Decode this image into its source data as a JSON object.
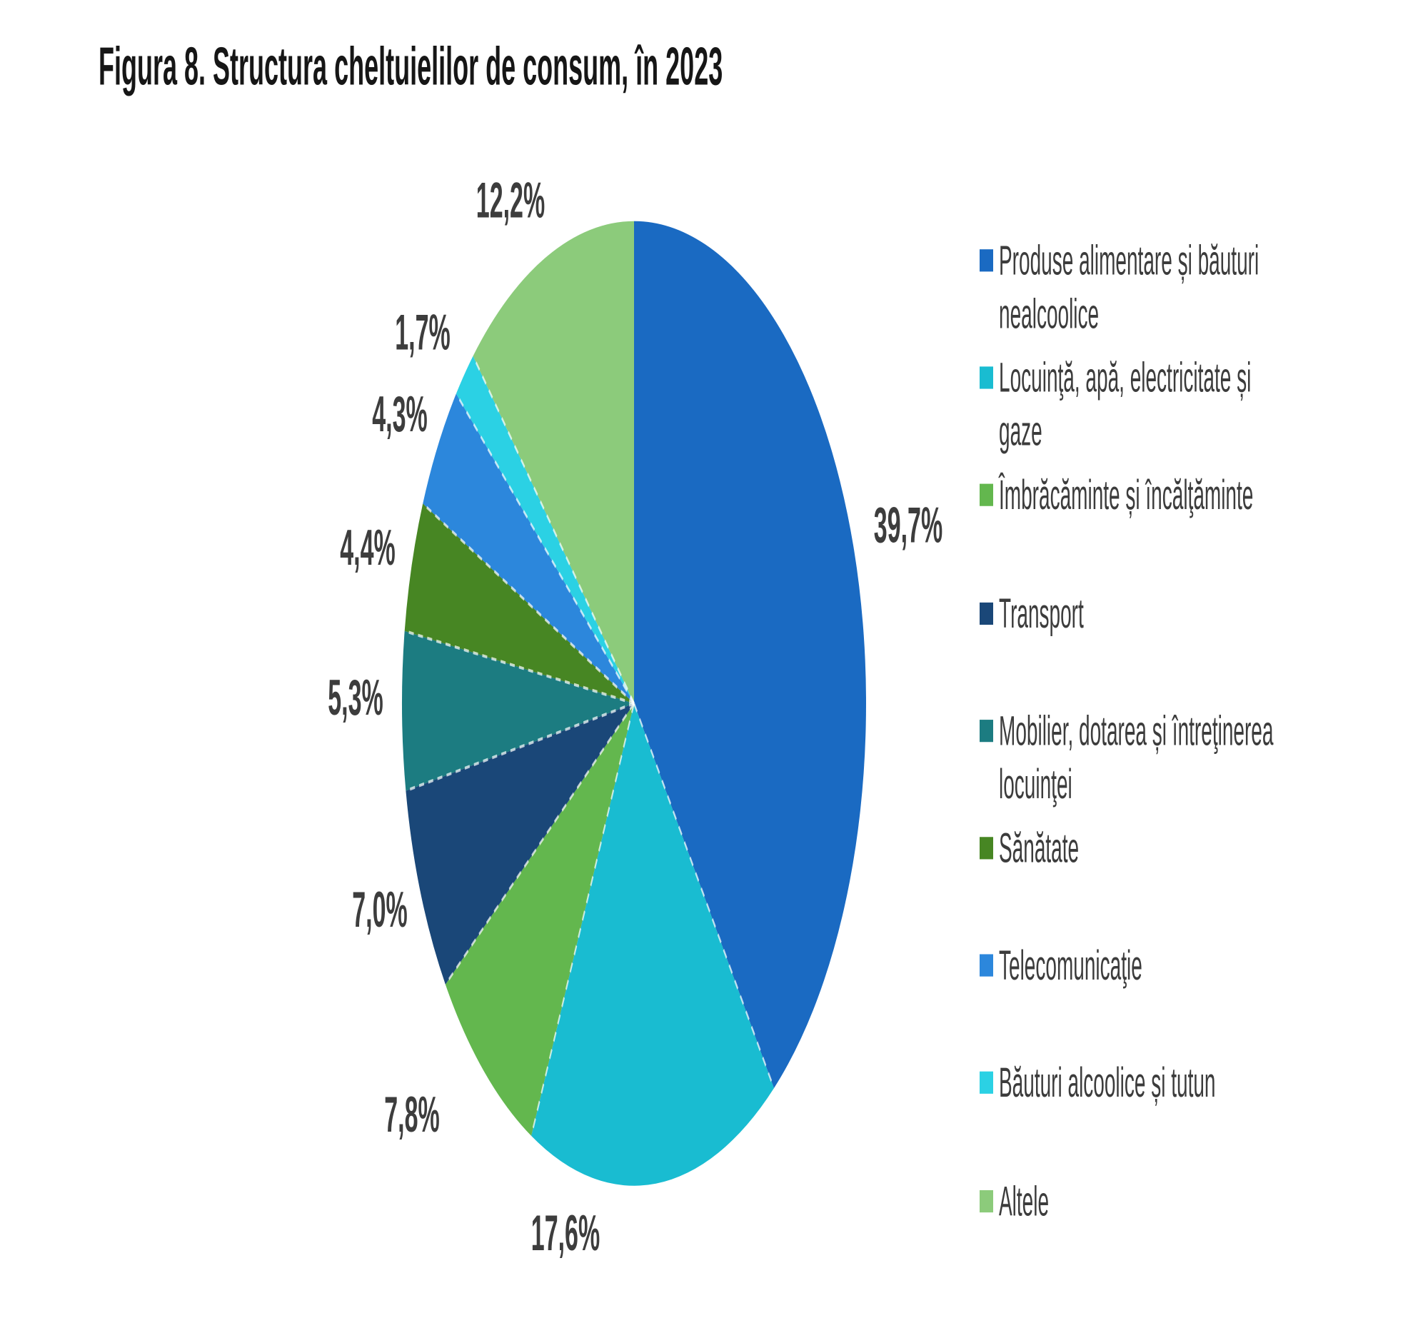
{
  "title": "Figura 8. Structura cheltuielilor de consum, în 2023",
  "chart_data": {
    "type": "pie",
    "title": "Figura 8. Structura cheltuielilor de consum, în 2023",
    "unit": "%",
    "decimal_separator": ",",
    "legend_position": "right",
    "start_angle_deg": 0,
    "direction": "clockwise",
    "segments": [
      {
        "label": "Produse alimentare și băuturi nealcoolice",
        "legend_lines": [
          "Produse alimentare și băuturi",
          "nealcoolice"
        ],
        "value": 39.7,
        "display": "39,7%",
        "color": "#1A6AC2",
        "label_pos": [
          1272,
          355
        ]
      },
      {
        "label": "Locuinţă, apă, electricitate și gaze",
        "legend_lines": [
          "Locuinţă, apă, electricitate și",
          "gaze"
        ],
        "value": 17.6,
        "display": "17,6%",
        "color": "#19BCD1",
        "label_pos": [
          792,
          832
        ]
      },
      {
        "label": "Îmbrăcăminte și încălţăminte",
        "legend_lines": [
          "Îmbrăcăminte și încălţăminte"
        ],
        "value": 7.8,
        "display": "7,8%",
        "color": "#63B74E",
        "label_pos": [
          577,
          752
        ]
      },
      {
        "label": "Transport",
        "legend_lines": [
          "Transport"
        ],
        "value": 7.0,
        "display": "7,0%",
        "color": "#1A4778",
        "label_pos": [
          532,
          614
        ]
      },
      {
        "label": "Mobilier, dotarea și întreţinerea locuinţei",
        "legend_lines": [
          "Mobilier, dotarea și întreţinerea",
          "locuinţei"
        ],
        "value": 5.3,
        "display": "5,3%",
        "color": "#1C7C81",
        "label_pos": [
          498,
          471
        ]
      },
      {
        "label": "Sănătate",
        "legend_lines": [
          "Sănătate"
        ],
        "value": 4.4,
        "display": "4,4%",
        "color": "#478623",
        "label_pos": [
          515,
          370
        ]
      },
      {
        "label": "Telecomunicaţie",
        "legend_lines": [
          "Telecomunicaţie"
        ],
        "value": 4.3,
        "display": "4,3%",
        "color": "#2C87DC",
        "label_pos": [
          560,
          280
        ]
      },
      {
        "label": "Băuturi alcoolice și tutun",
        "legend_lines": [
          "Băuturi alcoolice și tutun"
        ],
        "value": 1.7,
        "display": "1,7%",
        "color": "#2BD1E4",
        "label_pos": [
          592,
          225
        ]
      },
      {
        "label": "Altele",
        "legend_lines": [
          "Altele"
        ],
        "value": 12.2,
        "display": "12,2%",
        "color": "#8CCB7B",
        "label_pos": [
          715,
          136
        ]
      }
    ]
  }
}
